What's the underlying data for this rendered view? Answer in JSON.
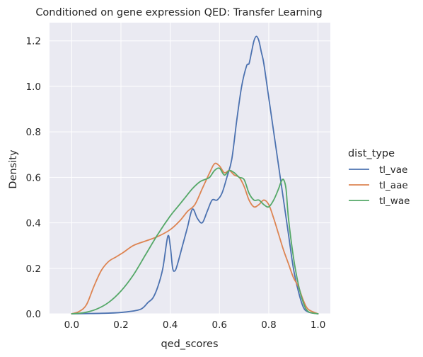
{
  "chart_data": {
    "type": "line",
    "title": "Conditioned on gene expression QED: Transfer Learning",
    "xlabel": "qed_scores",
    "ylabel": "Density",
    "xlim": [
      -0.09,
      1.05
    ],
    "ylim": [
      0,
      1.28
    ],
    "xticks": [
      0.0,
      0.2,
      0.4,
      0.6,
      0.8,
      1.0
    ],
    "xtick_labels": [
      "0.0",
      "0.2",
      "0.4",
      "0.6",
      "0.8",
      "1.0"
    ],
    "yticks": [
      0.0,
      0.2,
      0.4,
      0.6,
      0.8,
      1.0,
      1.2
    ],
    "ytick_labels": [
      "0.0",
      "0.2",
      "0.4",
      "0.6",
      "0.8",
      "1.0",
      "1.2"
    ],
    "grid": true,
    "legend": {
      "title": "dist_type",
      "placement": "outside-right"
    },
    "series": [
      {
        "name": "tl_vae",
        "color": "#4c72b0",
        "x": [
          0.0,
          0.15,
          0.22,
          0.28,
          0.31,
          0.33,
          0.35,
          0.37,
          0.39,
          0.4,
          0.41,
          0.42,
          0.43,
          0.45,
          0.47,
          0.49,
          0.51,
          0.53,
          0.55,
          0.57,
          0.59,
          0.61,
          0.63,
          0.65,
          0.67,
          0.69,
          0.71,
          0.72,
          0.73,
          0.74,
          0.75,
          0.76,
          0.77,
          0.78,
          0.8,
          0.82,
          0.84,
          0.86,
          0.88,
          0.9,
          0.92,
          0.94,
          0.96,
          1.0
        ],
        "y": [
          0.0,
          0.003,
          0.008,
          0.02,
          0.05,
          0.07,
          0.12,
          0.2,
          0.34,
          0.3,
          0.2,
          0.19,
          0.22,
          0.3,
          0.38,
          0.46,
          0.42,
          0.4,
          0.45,
          0.5,
          0.5,
          0.53,
          0.6,
          0.68,
          0.85,
          1.0,
          1.09,
          1.1,
          1.15,
          1.2,
          1.22,
          1.2,
          1.15,
          1.1,
          0.95,
          0.8,
          0.65,
          0.5,
          0.35,
          0.2,
          0.1,
          0.03,
          0.008,
          0.0
        ]
      },
      {
        "name": "tl_aae",
        "color": "#dd8452",
        "x": [
          0.0,
          0.03,
          0.06,
          0.09,
          0.12,
          0.15,
          0.18,
          0.21,
          0.25,
          0.3,
          0.35,
          0.4,
          0.44,
          0.47,
          0.5,
          0.53,
          0.56,
          0.58,
          0.6,
          0.62,
          0.64,
          0.66,
          0.68,
          0.7,
          0.72,
          0.74,
          0.76,
          0.78,
          0.8,
          0.82,
          0.84,
          0.86,
          0.88,
          0.9,
          0.92,
          0.94,
          0.96,
          1.0
        ],
        "y": [
          0.0,
          0.01,
          0.04,
          0.12,
          0.19,
          0.23,
          0.25,
          0.27,
          0.3,
          0.32,
          0.34,
          0.37,
          0.41,
          0.45,
          0.48,
          0.55,
          0.62,
          0.66,
          0.65,
          0.62,
          0.63,
          0.61,
          0.6,
          0.56,
          0.5,
          0.47,
          0.48,
          0.5,
          0.48,
          0.42,
          0.35,
          0.28,
          0.22,
          0.16,
          0.12,
          0.06,
          0.02,
          0.0
        ]
      },
      {
        "name": "tl_wae",
        "color": "#55a868",
        "x": [
          0.0,
          0.05,
          0.1,
          0.15,
          0.2,
          0.25,
          0.3,
          0.35,
          0.4,
          0.43,
          0.46,
          0.49,
          0.52,
          0.54,
          0.56,
          0.58,
          0.6,
          0.62,
          0.64,
          0.66,
          0.68,
          0.7,
          0.72,
          0.74,
          0.76,
          0.78,
          0.8,
          0.82,
          0.84,
          0.85,
          0.86,
          0.87,
          0.88,
          0.9,
          0.92,
          0.94,
          0.96,
          1.0
        ],
        "y": [
          0.0,
          0.005,
          0.02,
          0.05,
          0.1,
          0.17,
          0.26,
          0.35,
          0.43,
          0.47,
          0.51,
          0.55,
          0.58,
          0.59,
          0.6,
          0.63,
          0.64,
          0.61,
          0.63,
          0.62,
          0.6,
          0.59,
          0.53,
          0.5,
          0.5,
          0.48,
          0.47,
          0.5,
          0.55,
          0.58,
          0.59,
          0.55,
          0.42,
          0.25,
          0.13,
          0.05,
          0.01,
          0.0
        ]
      }
    ]
  }
}
